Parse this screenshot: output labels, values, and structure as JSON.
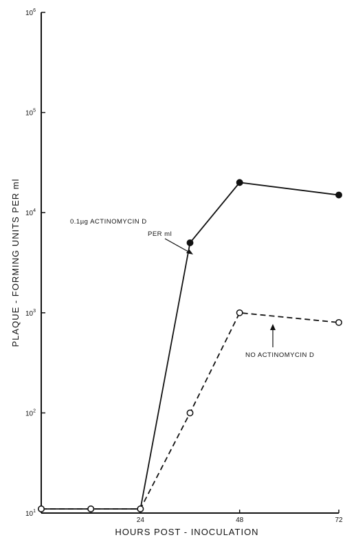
{
  "chart_data": {
    "type": "line",
    "title": "",
    "xlabel": "HOURS POST - INOCULATION",
    "ylabel": "PLAQUE - FORMING UNITS PER ml",
    "xlim": [
      0,
      72
    ],
    "ylim": [
      10,
      1000000
    ],
    "yscale": "log",
    "grid": false,
    "x_ticks": [
      {
        "value": 24,
        "label": "24"
      },
      {
        "value": 48,
        "label": "48"
      },
      {
        "value": 72,
        "label": "72"
      }
    ],
    "y_ticks": [
      {
        "value": 10,
        "base": "10",
        "exp": "1"
      },
      {
        "value": 100,
        "base": "10",
        "exp": "2"
      },
      {
        "value": 1000,
        "base": "10",
        "exp": "3"
      },
      {
        "value": 10000,
        "base": "10",
        "exp": "4"
      },
      {
        "value": 100000,
        "base": "10",
        "exp": "5"
      },
      {
        "value": 1000000,
        "base": "10",
        "exp": "6"
      }
    ],
    "series": [
      {
        "marker": "filled-circle",
        "line_style": "solid",
        "color": "#111111",
        "x": [
          0,
          12,
          24,
          36,
          48,
          72
        ],
        "y": [
          11,
          11,
          11,
          5000,
          20000,
          15000
        ]
      },
      {
        "marker": "open-circle",
        "line_style": "dashed",
        "color": "#111111",
        "x": [
          0,
          12,
          24,
          36,
          48,
          72
        ],
        "y": [
          11,
          11,
          11,
          100,
          1000,
          800
        ]
      }
    ],
    "annotations": [
      {
        "lines": [
          "0.1µg ACTINOMYCIN D",
          "PER ml"
        ],
        "series_index": 0
      },
      {
        "lines": [
          "NO ACTINOMYCIN D"
        ],
        "series_index": 1
      }
    ]
  }
}
